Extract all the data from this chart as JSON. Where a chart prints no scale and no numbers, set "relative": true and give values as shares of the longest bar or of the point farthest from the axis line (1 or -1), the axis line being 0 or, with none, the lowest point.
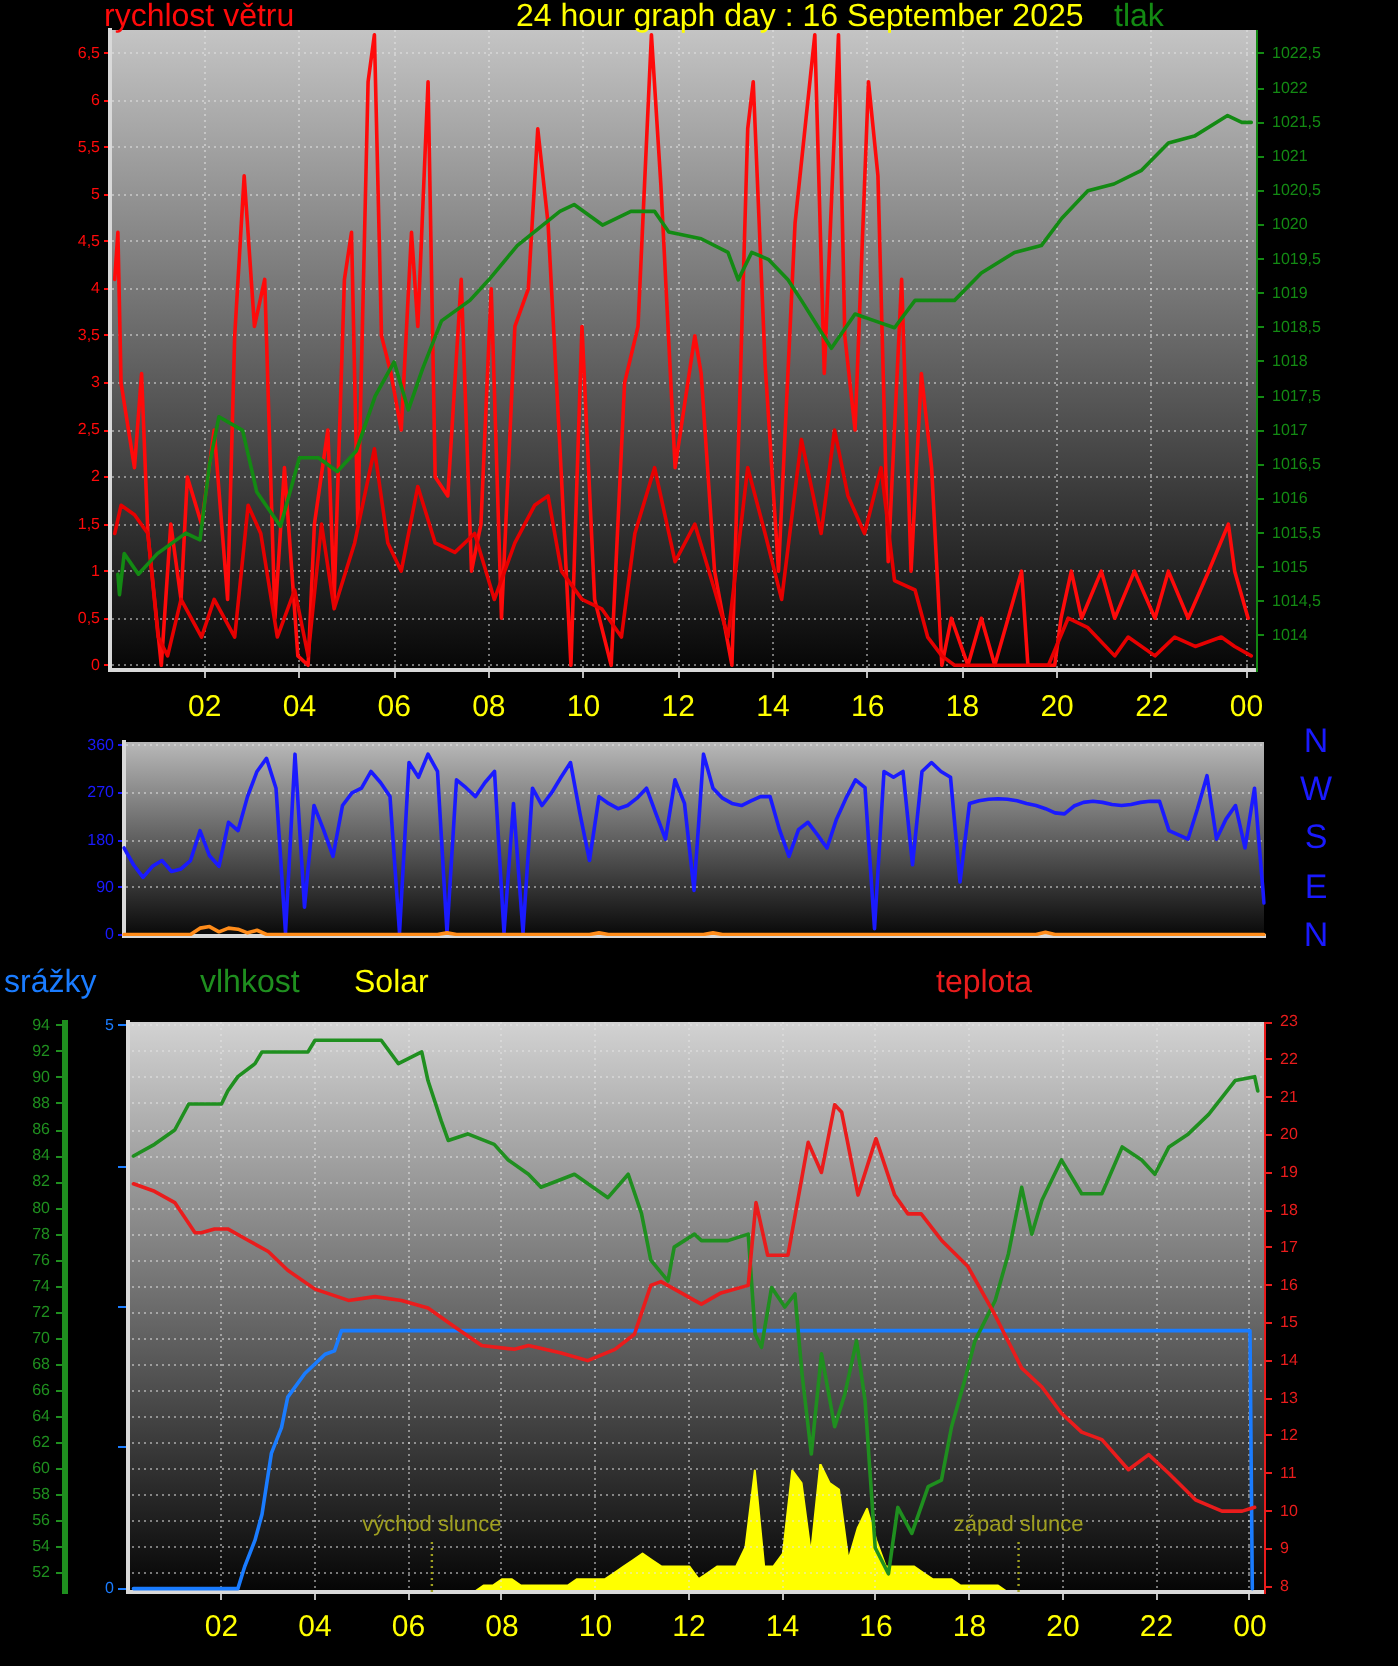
{
  "chart_data": [
    {
      "type": "line",
      "title": "24 hour graph day : 16 September 2025",
      "ylabel": "rychlost větru",
      "y2label": "tlak",
      "grid": true,
      "xlim": [
        "2025-09-16T00:00",
        "2025-09-17T00:12"
      ],
      "xticks": [
        {
          "value": "2025-09-16T02:00",
          "label": "02"
        },
        {
          "value": "2025-09-16T04:00",
          "label": "04"
        },
        {
          "value": "2025-09-16T06:00",
          "label": "06"
        },
        {
          "value": "2025-09-16T08:00",
          "label": "08"
        },
        {
          "value": "2025-09-16T10:00",
          "label": "10"
        },
        {
          "value": "2025-09-16T12:00",
          "label": "12"
        },
        {
          "value": "2025-09-16T14:00",
          "label": "14"
        },
        {
          "value": "2025-09-16T16:00",
          "label": "16"
        },
        {
          "value": "2025-09-16T18:00",
          "label": "18"
        },
        {
          "value": "2025-09-16T20:00",
          "label": "20"
        },
        {
          "value": "2025-09-16T22:00",
          "label": "22"
        },
        {
          "value": "2025-09-17T00:00",
          "label": "00"
        }
      ],
      "ylim": [
        -0.05,
        6.75
      ],
      "yticks": [
        0,
        {
          "value": 0.5,
          "label": "0,5"
        },
        1,
        {
          "value": 1.5,
          "label": "1,5"
        },
        2,
        {
          "value": 2.5,
          "label": "2,5"
        },
        3,
        {
          "value": 3.5,
          "label": "3,5"
        },
        4,
        {
          "value": 4.5,
          "label": "4,5"
        },
        5,
        {
          "value": 5.5,
          "label": "5,5"
        },
        6,
        {
          "value": 6.5,
          "label": "6,5"
        }
      ],
      "y2lim": [
        1013.5,
        1022.85
      ],
      "y2ticks": [
        1014,
        {
          "value": 1014.5,
          "label": "1014,5"
        },
        1015,
        {
          "value": 1015.5,
          "label": "1015,5"
        },
        1016,
        {
          "value": 1016.5,
          "label": "1016,5"
        },
        1017,
        {
          "value": 1017.5,
          "label": "1017,5"
        },
        1018,
        {
          "value": 1018.5,
          "label": "1018,5"
        },
        1019,
        {
          "value": 1019.5,
          "label": "1019,5"
        },
        1020,
        {
          "value": 1020.5,
          "label": "1020,5"
        },
        1021,
        {
          "value": 1021.5,
          "label": "1021,5"
        },
        1022,
        {
          "value": 1022.5,
          "label": "1022,5"
        }
      ],
      "series": [
        {
          "color": "#ff0a0a",
          "x": [
            "2025-09-16T00:06",
            "2025-09-16T00:10",
            "2025-09-16T00:14",
            "2025-09-16T00:31",
            "2025-09-16T00:40",
            "2025-09-16T00:48",
            "2025-09-16T01:05",
            "2025-09-16T01:17",
            "2025-09-16T01:30",
            "2025-09-16T01:38",
            "2025-09-16T01:56",
            "2025-09-16T02:12",
            "2025-09-16T02:29",
            "2025-09-16T02:38",
            "2025-09-16T02:50",
            "2025-09-16T03:03",
            "2025-09-16T03:16",
            "2025-09-16T03:29",
            "2025-09-16T03:41",
            "2025-09-16T03:58",
            "2025-09-16T04:11",
            "2025-09-16T04:19",
            "2025-09-16T04:36",
            "2025-09-16T04:44",
            "2025-09-16T04:57",
            "2025-09-16T05:06",
            "2025-09-16T05:14",
            "2025-09-16T05:27",
            "2025-09-16T05:35",
            "2025-09-16T05:44",
            "2025-09-16T05:56",
            "2025-09-16T06:09",
            "2025-09-16T06:22",
            "2025-09-16T06:30",
            "2025-09-16T06:43",
            "2025-09-16T06:52",
            "2025-09-16T07:08",
            "2025-09-16T07:25",
            "2025-09-16T07:38",
            "2025-09-16T07:50",
            "2025-09-16T08:03",
            "2025-09-16T08:16",
            "2025-09-16T08:33",
            "2025-09-16T08:50",
            "2025-09-16T09:02",
            "2025-09-16T09:15",
            "2025-09-16T09:32",
            "2025-09-16T09:44",
            "2025-09-16T09:58",
            "2025-09-16T10:14",
            "2025-09-16T10:35",
            "2025-09-16T10:52",
            "2025-09-16T11:09",
            "2025-09-16T11:26",
            "2025-09-16T11:38",
            "2025-09-16T11:56",
            "2025-09-16T12:21",
            "2025-09-16T12:29",
            "2025-09-16T12:46",
            "2025-09-16T13:08",
            "2025-09-16T13:28",
            "2025-09-16T13:35",
            "2025-09-16T13:50",
            "2025-09-16T14:07",
            "2025-09-16T14:28",
            "2025-09-16T14:53",
            "2025-09-16T15:05",
            "2025-09-16T15:23",
            "2025-09-16T15:31",
            "2025-09-16T15:44",
            "2025-09-16T16:01",
            "2025-09-16T16:13",
            "2025-09-16T16:26",
            "2025-09-16T16:43",
            "2025-09-16T16:55",
            "2025-09-16T17:08",
            "2025-09-16T17:21",
            "2025-09-16T17:34",
            "2025-09-16T17:46",
            "2025-09-16T18:07",
            "2025-09-16T18:24",
            "2025-09-16T18:41",
            "2025-09-16T18:58",
            "2025-09-16T19:15",
            "2025-09-16T19:23",
            "2025-09-16T19:57",
            "2025-09-16T20:05",
            "2025-09-16T20:18",
            "2025-09-16T20:31",
            "2025-09-16T20:56",
            "2025-09-16T21:13",
            "2025-09-16T21:38",
            "2025-09-16T22:04",
            "2025-09-16T22:21",
            "2025-09-16T22:46",
            "2025-09-16T23:12",
            "2025-09-16T23:37",
            "2025-09-16T23:45",
            "2025-09-17T00:02"
          ],
          "values": [
            4.1,
            4.6,
            3.0,
            2.1,
            3.1,
            1.4,
            0,
            1.5,
            0.7,
            2.0,
            1.5,
            2.5,
            0.7,
            3.5,
            5.2,
            3.6,
            4.1,
            0.5,
            2.1,
            0.1,
            0,
            1.5,
            2.5,
            0.7,
            4.1,
            4.6,
            1.5,
            6.2,
            6.7,
            3.5,
            3.1,
            2.5,
            4.6,
            3.6,
            6.2,
            2.0,
            1.8,
            4.1,
            1.0,
            1.5,
            4.0,
            0.5,
            3.6,
            4.0,
            5.7,
            4.7,
            2.0,
            0,
            3.6,
            0.7,
            0,
            3.0,
            3.6,
            6.7,
            5.1,
            2.1,
            3.5,
            3.1,
            1.0,
            0,
            5.7,
            6.2,
            3.2,
            1.0,
            4.7,
            6.7,
            3.1,
            6.7,
            3.5,
            2.5,
            6.2,
            5.2,
            1.1,
            4.1,
            1.0,
            3.1,
            2.1,
            0,
            0.5,
            0,
            0.5,
            0,
            0.5,
            1.0,
            0,
            0,
            0.5,
            1.0,
            0.5,
            1.0,
            0.5,
            1.0,
            0.5,
            1.0,
            0.5,
            1.0,
            1.5,
            1.0,
            0.5
          ]
        },
        {
          "color": "#e60000",
          "x": [
            "2025-09-16T00:06",
            "2025-09-16T00:14",
            "2025-09-16T00:31",
            "2025-09-16T00:48",
            "2025-09-16T01:01",
            "2025-09-16T01:13",
            "2025-09-16T01:30",
            "2025-09-16T01:56",
            "2025-09-16T02:12",
            "2025-09-16T02:38",
            "2025-09-16T02:55",
            "2025-09-16T03:11",
            "2025-09-16T03:32",
            "2025-09-16T03:54",
            "2025-09-16T04:11",
            "2025-09-16T04:28",
            "2025-09-16T04:44",
            "2025-09-16T05:10",
            "2025-09-16T05:35",
            "2025-09-16T05:52",
            "2025-09-16T06:09",
            "2025-09-16T06:30",
            "2025-09-16T06:52",
            "2025-09-16T07:17",
            "2025-09-16T07:42",
            "2025-09-16T08:07",
            "2025-09-16T08:33",
            "2025-09-16T08:58",
            "2025-09-16T09:15",
            "2025-09-16T09:32",
            "2025-09-16T09:58",
            "2025-09-16T10:23",
            "2025-09-16T10:48",
            "2025-09-16T11:05",
            "2025-09-16T11:30",
            "2025-09-16T11:56",
            "2025-09-16T12:21",
            "2025-09-16T12:46",
            "2025-09-16T13:03",
            "2025-09-16T13:28",
            "2025-09-16T13:50",
            "2025-09-16T14:11",
            "2025-09-16T14:36",
            "2025-09-16T15:01",
            "2025-09-16T15:18",
            "2025-09-16T15:35",
            "2025-09-16T15:56",
            "2025-09-16T16:17",
            "2025-09-16T16:34",
            "2025-09-16T17:00",
            "2025-09-16T17:16",
            "2025-09-16T17:34",
            "2025-09-16T17:50",
            "2025-09-16T18:32",
            "2025-09-16T19:06",
            "2025-09-16T19:49",
            "2025-09-16T20:14",
            "2025-09-16T20:39",
            "2025-09-16T21:13",
            "2025-09-16T21:30",
            "2025-09-16T22:04",
            "2025-09-16T22:29",
            "2025-09-16T22:55",
            "2025-09-16T23:28",
            "2025-09-16T23:45",
            "2025-09-17T00:06"
          ],
          "values": [
            1.4,
            1.7,
            1.6,
            1.4,
            0.3,
            0.1,
            0.7,
            0.3,
            0.7,
            0.3,
            1.7,
            1.4,
            0.3,
            0.8,
            0.1,
            1.5,
            0.6,
            1.3,
            2.3,
            1.3,
            1.0,
            1.9,
            1.3,
            1.2,
            1.4,
            0.7,
            1.3,
            1.7,
            1.8,
            1.0,
            0.7,
            0.6,
            0.3,
            1.4,
            2.1,
            1.1,
            1.5,
            0.8,
            0.3,
            2.1,
            1.4,
            0.7,
            2.4,
            1.4,
            2.5,
            1.8,
            1.4,
            2.1,
            0.9,
            0.8,
            0.3,
            0.1,
            0,
            0,
            0,
            0,
            0.5,
            0.4,
            0.1,
            0.3,
            0.1,
            0.3,
            0.2,
            0.3,
            0.2,
            0.1
          ]
        },
        {
          "color": "#138a13",
          "axis": "y2",
          "x": [
            "2025-09-16T00:10",
            "2025-09-16T00:12",
            "2025-09-16T00:18",
            "2025-09-16T00:36",
            "2025-09-16T01:00",
            "2025-09-16T01:36",
            "2025-09-16T01:54",
            "2025-09-16T02:06",
            "2025-09-16T02:18",
            "2025-09-16T02:48",
            "2025-09-16T03:06",
            "2025-09-16T03:36",
            "2025-09-16T04:00",
            "2025-09-16T04:24",
            "2025-09-16T04:48",
            "2025-09-16T05:12",
            "2025-09-16T05:36",
            "2025-09-16T06:00",
            "2025-09-16T06:18",
            "2025-09-16T06:36",
            "2025-09-16T07:00",
            "2025-09-16T07:36",
            "2025-09-16T08:00",
            "2025-09-16T08:36",
            "2025-09-16T09:30",
            "2025-09-16T09:48",
            "2025-09-16T10:24",
            "2025-09-16T11:00",
            "2025-09-16T11:30",
            "2025-09-16T11:48",
            "2025-09-16T12:29",
            "2025-09-16T13:03",
            "2025-09-16T13:16",
            "2025-09-16T13:33",
            "2025-09-16T13:54",
            "2025-09-16T14:19",
            "2025-09-16T14:36",
            "2025-09-16T15:14",
            "2025-09-16T15:44",
            "2025-09-16T16:09",
            "2025-09-16T16:34",
            "2025-09-16T17:00",
            "2025-09-16T17:50",
            "2025-09-16T18:24",
            "2025-09-16T19:06",
            "2025-09-16T19:40",
            "2025-09-16T20:06",
            "2025-09-16T20:39",
            "2025-09-16T21:12",
            "2025-09-16T21:47",
            "2025-09-16T22:21",
            "2025-09-16T22:54",
            "2025-09-16T23:36",
            "2025-09-16T23:54",
            "2025-09-17T00:06"
          ],
          "values": [
            1014.9,
            1014.6,
            1015.2,
            1014.9,
            1015.2,
            1015.5,
            1015.4,
            1016.5,
            1017.2,
            1017.0,
            1016.1,
            1015.6,
            1016.6,
            1016.6,
            1016.4,
            1016.7,
            1017.5,
            1018.0,
            1017.3,
            1017.9,
            1018.6,
            1018.9,
            1019.2,
            1019.7,
            1020.2,
            1020.3,
            1020.0,
            1020.2,
            1020.2,
            1019.9,
            1019.8,
            1019.6,
            1019.2,
            1019.6,
            1019.5,
            1019.2,
            1018.9,
            1018.2,
            1018.7,
            1018.6,
            1018.5,
            1018.9,
            1018.9,
            1019.3,
            1019.6,
            1019.7,
            1020.1,
            1020.5,
            1020.6,
            1020.8,
            1021.2,
            1021.3,
            1021.6,
            1021.5,
            1021.5
          ]
        }
      ]
    },
    {
      "type": "line",
      "grid": "y",
      "tick_labels": "y",
      "annotations": [
        "N",
        "W",
        "S",
        "E",
        "N"
      ],
      "categories": [
        null,
        null,
        null,
        null,
        null,
        null,
        null,
        null,
        null,
        null,
        null,
        null,
        null,
        null,
        null,
        null,
        null,
        null,
        null,
        null,
        null,
        null,
        null,
        null,
        null,
        null,
        null,
        null,
        null,
        null,
        null,
        null,
        null,
        null,
        null,
        null,
        null,
        null,
        null,
        null,
        null,
        null,
        null,
        null,
        null,
        null,
        null,
        null,
        null,
        null,
        null,
        null,
        null,
        null,
        null,
        null,
        null,
        null,
        null,
        null,
        null,
        null,
        null,
        null,
        null,
        null,
        null,
        null,
        null,
        null,
        null,
        null,
        null,
        null,
        null,
        null,
        null,
        null,
        null,
        null,
        null,
        null,
        null,
        null,
        null,
        null,
        null,
        null,
        null,
        null,
        null,
        null,
        null,
        null,
        null,
        null,
        null,
        null,
        null,
        null,
        null,
        null,
        null,
        null,
        null,
        null,
        null,
        null,
        null,
        null,
        null,
        null,
        null,
        null,
        null,
        null,
        null,
        null,
        null,
        null,
        null
      ],
      "ylim": [
        -3,
        368
      ],
      "yticks": [
        0,
        90,
        180,
        270,
        360
      ],
      "series": [
        {
          "color": "#1a1aff",
          "values": [
            165,
            133,
            109,
            130,
            141,
            120,
            125,
            141,
            198,
            150,
            130,
            214,
            198,
            263,
            311,
            336,
            279,
            3,
            344,
            52,
            246,
            200,
            149,
            246,
            270,
            279,
            311,
            290,
            263,
            3,
            328,
            300,
            344,
            311,
            3,
            295,
            280,
            263,
            290,
            311,
            3,
            250,
            3,
            279,
            246,
            270,
            300,
            328,
            230,
            141,
            263,
            250,
            240,
            246,
            260,
            279,
            230,
            182,
            295,
            250,
            84,
            344,
            279,
            260,
            250,
            246,
            255,
            263,
            263,
            200,
            149,
            200,
            214,
            190,
            165,
            220,
            260,
            295,
            280,
            11,
            311,
            300,
            311,
            133,
            311,
            328,
            311,
            300,
            100,
            250,
            255,
            258,
            259,
            258,
            255,
            250,
            246,
            240,
            232,
            230,
            245,
            252,
            254,
            252,
            248,
            246,
            248,
            252,
            254,
            254,
            198,
            190,
            182,
            240,
            303,
            182,
            220,
            246,
            165,
            279,
            60
          ]
        },
        {
          "color": "#ff8c1a",
          "values": [
            0,
            0,
            0,
            0,
            0,
            0,
            0,
            0,
            12,
            15,
            5,
            12,
            10,
            3,
            8,
            0,
            0,
            0,
            0,
            0,
            0,
            0,
            0,
            0,
            0,
            0,
            0,
            0,
            0,
            0,
            0,
            0,
            0,
            0,
            3,
            0,
            0,
            0,
            0,
            0,
            0,
            0,
            0,
            0,
            0,
            0,
            0,
            0,
            0,
            0,
            3,
            0,
            0,
            0,
            0,
            0,
            0,
            0,
            0,
            0,
            0,
            0,
            3,
            0,
            0,
            0,
            0,
            0,
            0,
            0,
            0,
            0,
            0,
            0,
            0,
            0,
            0,
            0,
            0,
            0,
            0,
            0,
            0,
            0,
            0,
            0,
            0,
            0,
            0,
            0,
            0,
            0,
            0,
            0,
            0,
            0,
            0,
            4,
            0,
            0,
            0,
            0,
            0,
            0,
            0,
            0,
            0,
            0,
            0,
            0,
            0,
            0,
            0,
            0,
            0,
            0,
            0,
            0,
            0,
            0,
            0
          ]
        }
      ]
    },
    {
      "type": "line",
      "legend": "top",
      "grid": true,
      "xlim": [
        "2025-09-16T00:00",
        "2025-09-17T00:18"
      ],
      "xticks": [
        {
          "value": "2025-09-16T02:00",
          "label": "02"
        },
        {
          "value": "2025-09-16T04:00",
          "label": "04"
        },
        {
          "value": "2025-09-16T06:00",
          "label": "06"
        },
        {
          "value": "2025-09-16T08:00",
          "label": "08"
        },
        {
          "value": "2025-09-16T10:00",
          "label": "10"
        },
        {
          "value": "2025-09-16T12:00",
          "label": "12"
        },
        {
          "value": "2025-09-16T14:00",
          "label": "14"
        },
        {
          "value": "2025-09-16T16:00",
          "label": "16"
        },
        {
          "value": "2025-09-16T18:00",
          "label": "18"
        },
        {
          "value": "2025-09-16T20:00",
          "label": "20"
        },
        {
          "value": "2025-09-16T22:00",
          "label": "22"
        },
        {
          "value": "2025-09-17T00:00",
          "label": "00"
        }
      ],
      "ylim": [
        50.5,
        94.3
      ],
      "yticks": [
        52,
        54,
        56,
        58,
        60,
        62,
        64,
        66,
        68,
        70,
        72,
        74,
        76,
        78,
        80,
        82,
        84,
        86,
        88,
        90,
        92,
        94
      ],
      "y2lim": [
        7.85,
        23
      ],
      "y2ticks": [
        8,
        9,
        10,
        11,
        12,
        13,
        14,
        15,
        16,
        17,
        18,
        19,
        20,
        21,
        22,
        23
      ],
      "y3lim": [
        -0.03,
        5.03
      ],
      "y3ticks": [
        0,
        {
          "value": 1.25,
          "label": null
        },
        {
          "value": 2.5,
          "label": null
        },
        {
          "value": 3.75,
          "label": null
        },
        5
      ],
      "ref_lines": [
        {
          "axis": "x",
          "value": "2025-09-16T06:30",
          "label": "východ slunce",
          "color": "#a0a020",
          "line_style": "dotted"
        },
        {
          "axis": "x",
          "value": "2025-09-16T19:03",
          "label": "západ slunce",
          "color": "#a0a020",
          "line_style": "dotted"
        }
      ],
      "series": [
        {
          "name": "srážky",
          "color": "#1a7cff",
          "axis": "y3",
          "x": [
            "2025-09-16T00:07",
            "2025-09-16T02:21",
            "2025-09-16T02:30",
            "2025-09-16T02:43",
            "2025-09-16T02:52",
            "2025-09-16T03:04",
            "2025-09-16T03:17",
            "2025-09-16T03:25",
            "2025-09-16T03:47",
            "2025-09-16T04:13",
            "2025-09-16T04:25",
            "2025-09-16T04:34",
            "2025-09-17T00:00",
            "2025-09-17T00:03"
          ],
          "values": [
            0,
            0,
            0.2,
            0.43,
            0.66,
            1.2,
            1.43,
            1.7,
            1.91,
            2.08,
            2.11,
            2.29,
            2.29,
            0
          ]
        },
        {
          "name": "vlhkost",
          "color": "#1f8f1f",
          "x": [
            "2025-09-16T00:07",
            "2025-09-16T00:34",
            "2025-09-16T01:00",
            "2025-09-16T01:18",
            "2025-09-16T02:00",
            "2025-09-16T02:08",
            "2025-09-16T02:21",
            "2025-09-16T02:43",
            "2025-09-16T02:52",
            "2025-09-16T03:51",
            "2025-09-16T04:00",
            "2025-09-16T05:25",
            "2025-09-16T05:47",
            "2025-09-16T06:17",
            "2025-09-16T06:25",
            "2025-09-16T06:42",
            "2025-09-16T06:51",
            "2025-09-16T07:16",
            "2025-09-16T07:50",
            "2025-09-16T08:08",
            "2025-09-16T08:34",
            "2025-09-16T08:50",
            "2025-09-16T09:33",
            "2025-09-16T10:16",
            "2025-09-16T10:42",
            "2025-09-16T10:59",
            "2025-09-16T11:11",
            "2025-09-16T11:33",
            "2025-09-16T11:41",
            "2025-09-16T12:07",
            "2025-09-16T12:16",
            "2025-09-16T12:50",
            "2025-09-16T13:16",
            "2025-09-16T13:25",
            "2025-09-16T13:33",
            "2025-09-16T13:46",
            "2025-09-16T14:03",
            "2025-09-16T14:16",
            "2025-09-16T14:25",
            "2025-09-16T14:37",
            "2025-09-16T14:50",
            "2025-09-16T15:07",
            "2025-09-16T15:20",
            "2025-09-16T15:35",
            "2025-09-16T15:46",
            "2025-09-16T15:59",
            "2025-09-16T16:16",
            "2025-09-16T16:28",
            "2025-09-16T16:46",
            "2025-09-16T17:07",
            "2025-09-16T17:24",
            "2025-09-16T17:37",
            "2025-09-16T17:54",
            "2025-09-16T18:07",
            "2025-09-16T18:33",
            "2025-09-16T18:50",
            "2025-09-16T19:07",
            "2025-09-16T19:20",
            "2025-09-16T19:33",
            "2025-09-16T19:58",
            "2025-09-16T20:24",
            "2025-09-16T20:50",
            "2025-09-16T21:16",
            "2025-09-16T21:41",
            "2025-09-16T21:58",
            "2025-09-16T22:16",
            "2025-09-16T22:41",
            "2025-09-16T23:07",
            "2025-09-16T23:41",
            "2025-09-17T00:06",
            "2025-09-17T00:10"
          ],
          "values": [
            84,
            84.9,
            86,
            88,
            88,
            89,
            90.1,
            91.1,
            92,
            92,
            92.9,
            92.9,
            91.1,
            92,
            89.8,
            86.7,
            85.2,
            85.7,
            84.9,
            83.7,
            82.6,
            81.6,
            82.6,
            80.8,
            82.6,
            79.6,
            76,
            74.4,
            77,
            78,
            77.5,
            77.5,
            78,
            70.3,
            69.3,
            73.9,
            72.4,
            73.4,
            67.3,
            61.1,
            68.8,
            63.2,
            65.7,
            69.8,
            65.2,
            53.9,
            51.9,
            57,
            55,
            58.6,
            59.1,
            63.2,
            66.8,
            69.8,
            72.9,
            76.5,
            81.6,
            78,
            80.6,
            83.7,
            81.1,
            81.1,
            84.7,
            83.7,
            82.6,
            84.7,
            85.7,
            87.2,
            89.8,
            90.1,
            89
          ]
        },
        {
          "name": "teplota",
          "color": "#ea1c1c",
          "axis": "y2",
          "x": [
            "2025-09-16T00:07",
            "2025-09-16T00:34",
            "2025-09-16T01:00",
            "2025-09-16T01:26",
            "2025-09-16T01:34",
            "2025-09-16T01:51",
            "2025-09-16T02:08",
            "2025-09-16T02:34",
            "2025-09-16T03:00",
            "2025-09-16T03:25",
            "2025-09-16T04:00",
            "2025-09-16T04:43",
            "2025-09-16T05:17",
            "2025-09-16T05:51",
            "2025-09-16T06:25",
            "2025-09-16T06:59",
            "2025-09-16T07:34",
            "2025-09-16T08:16",
            "2025-09-16T08:34",
            "2025-09-16T09:16",
            "2025-09-16T09:50",
            "2025-09-16T10:25",
            "2025-09-16T10:50",
            "2025-09-16T11:11",
            "2025-09-16T11:24",
            "2025-09-16T11:50",
            "2025-09-16T12:07",
            "2025-09-16T12:16",
            "2025-09-16T12:41",
            "2025-09-16T13:16",
            "2025-09-16T13:26",
            "2025-09-16T13:41",
            "2025-09-16T14:07",
            "2025-09-16T14:33",
            "2025-09-16T14:50",
            "2025-09-16T15:07",
            "2025-09-16T15:16",
            "2025-09-16T15:37",
            "2025-09-16T16:00",
            "2025-09-16T16:24",
            "2025-09-16T16:41",
            "2025-09-16T16:58",
            "2025-09-16T17:24",
            "2025-09-16T17:58",
            "2025-09-16T18:33",
            "2025-09-16T19:07",
            "2025-09-16T19:33",
            "2025-09-16T19:58",
            "2025-09-16T20:24",
            "2025-09-16T20:50",
            "2025-09-16T21:24",
            "2025-09-16T21:50",
            "2025-09-16T22:16",
            "2025-09-16T22:50",
            "2025-09-16T23:24",
            "2025-09-16T23:50",
            "2025-09-17T00:06"
          ],
          "values": [
            18.7,
            18.5,
            18.2,
            17.4,
            17.4,
            17.5,
            17.5,
            17.2,
            16.9,
            16.4,
            15.9,
            15.6,
            15.7,
            15.6,
            15.4,
            14.9,
            14.4,
            14.3,
            14.4,
            14.2,
            14.0,
            14.3,
            14.7,
            16.0,
            16.1,
            15.8,
            15.6,
            15.5,
            15.8,
            16.0,
            18.2,
            16.8,
            16.8,
            19.8,
            19.0,
            20.8,
            20.6,
            18.4,
            19.9,
            18.4,
            17.9,
            17.9,
            17.2,
            16.5,
            15.2,
            13.8,
            13.3,
            12.6,
            12.1,
            11.9,
            11.1,
            11.5,
            11.0,
            10.3,
            10.0,
            10.0,
            10.1
          ]
        }
      ]
    },
    {
      "type": "area",
      "relative": true,
      "legend": "top",
      "tick_labels": false,
      "categories": [
        null,
        null,
        null,
        null,
        null,
        null,
        null,
        null,
        null,
        null,
        null,
        null,
        null,
        null,
        null,
        null,
        null,
        null,
        null,
        null,
        null,
        null,
        null,
        null,
        null,
        null,
        null,
        null,
        null,
        null,
        null,
        null,
        null,
        null,
        null,
        null,
        null,
        null,
        null,
        null,
        null,
        null,
        null,
        null,
        null,
        null,
        null,
        null,
        null,
        null,
        null,
        null,
        null,
        null,
        null,
        null,
        null,
        null,
        null,
        null,
        null,
        null,
        null,
        null,
        null,
        null,
        null,
        null,
        null,
        null,
        null,
        null,
        null,
        null,
        null,
        null,
        null,
        null,
        null,
        null,
        null,
        null,
        null,
        null,
        null,
        null,
        null,
        null,
        null,
        null,
        null,
        null,
        null,
        null,
        null,
        null,
        null,
        null,
        null,
        null,
        null,
        null,
        null,
        null,
        null,
        null,
        null,
        null,
        null,
        null,
        null,
        null,
        null,
        null,
        null,
        null,
        null,
        null,
        null,
        null,
        null,
        null
      ],
      "series": [
        {
          "name": "Solar",
          "color": "#ffff00",
          "values": [
            0,
            0,
            0,
            0,
            0,
            0,
            0,
            0,
            0,
            0,
            0,
            0,
            0,
            0,
            0,
            0,
            0,
            0,
            0,
            0,
            0,
            0,
            0,
            0,
            0,
            0,
            0,
            0,
            0,
            0,
            0,
            0,
            0,
            0,
            0,
            0,
            0,
            0,
            0.05,
            0.05,
            0.1,
            0.1,
            0.05,
            0.05,
            0.05,
            0.05,
            0.05,
            0.05,
            0.1,
            0.1,
            0.1,
            0.1,
            0.15,
            0.2,
            0.25,
            0.3,
            0.25,
            0.2,
            0.2,
            0.2,
            0.2,
            0.1,
            0.15,
            0.2,
            0.2,
            0.2,
            0.35,
            0.95,
            0.2,
            0.2,
            0.3,
            0.95,
            0.85,
            0.3,
            1,
            0.85,
            0.8,
            0.25,
            0.5,
            0.65,
            0.4,
            0.2,
            0.2,
            0.2,
            0.2,
            0.15,
            0.1,
            0.1,
            0.1,
            0.05,
            0.05,
            0.05,
            0.05,
            0.05,
            0,
            0,
            0,
            0,
            0,
            0,
            0,
            0,
            0,
            0,
            0,
            0,
            0,
            0,
            0,
            0,
            0,
            0,
            0,
            0,
            0,
            0,
            0,
            0,
            0,
            0,
            0,
            0
          ]
        }
      ]
    }
  ]
}
